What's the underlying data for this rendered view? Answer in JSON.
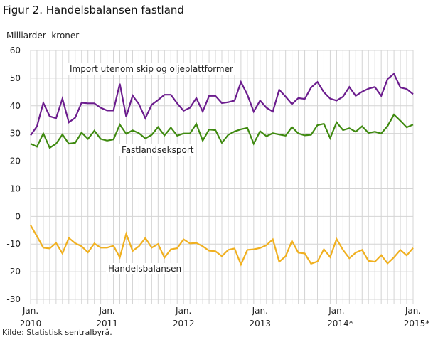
{
  "chart_data": {
    "type": "line",
    "title": "Figur 2. Handelsbalansen fastland",
    "ylabel": "Milliarder  kroner",
    "xlabel": "",
    "source": "Kilde: Statistisk sentralbyrå.",
    "ylim": [
      -30,
      60
    ],
    "yticks": [
      60,
      50,
      40,
      30,
      20,
      10,
      0,
      -10,
      -20,
      -30
    ],
    "grid": true,
    "x_start": "2010-01",
    "x_end": "2015-01",
    "frequency": "monthly",
    "xticks": [
      {
        "month": "Jan.",
        "year": "2010"
      },
      {
        "month": "Jan.",
        "year": "2011"
      },
      {
        "month": "Jan.",
        "year": "2012"
      },
      {
        "month": "Jan.",
        "year": "2013"
      },
      {
        "month": "Jan.",
        "year": "2014*"
      },
      {
        "month": "Jan.",
        "year": "2015*"
      }
    ],
    "series": [
      {
        "name": "Import utenom skip og oljeplattformer",
        "color": "#6c1d8e",
        "values": [
          29.3,
          32.6,
          41.1,
          36.2,
          35.5,
          42.6,
          34.0,
          35.7,
          41.1,
          40.9,
          40.9,
          39.3,
          38.3,
          38.3,
          48.0,
          36.0,
          43.7,
          40.6,
          35.5,
          40.4,
          42.1,
          44.0,
          44.0,
          40.9,
          38.2,
          39.3,
          42.8,
          37.9,
          43.6,
          43.6,
          41.0,
          41.3,
          41.9,
          48.6,
          44.0,
          37.9,
          41.9,
          39.3,
          37.9,
          45.8,
          43.3,
          40.6,
          42.8,
          42.5,
          46.6,
          48.6,
          44.9,
          42.6,
          41.9,
          43.3,
          46.8,
          43.6,
          45.1,
          46.2,
          46.8,
          43.6,
          49.7,
          51.6,
          46.6,
          46.1,
          44.2
        ]
      },
      {
        "name": "Fastlandseksport",
        "color": "#3f8a10",
        "values": [
          26.3,
          25.2,
          30.0,
          24.8,
          26.3,
          29.6,
          26.3,
          26.6,
          30.3,
          28.0,
          31.0,
          28.0,
          27.4,
          27.8,
          33.2,
          29.9,
          31.1,
          30.1,
          28.2,
          29.5,
          32.3,
          29.3,
          32.1,
          29.2,
          30.0,
          30.0,
          33.4,
          27.4,
          31.4,
          31.2,
          26.6,
          29.5,
          30.7,
          31.5,
          32.0,
          26.3,
          30.8,
          29.0,
          30.1,
          29.6,
          29.2,
          32.3,
          30.0,
          29.3,
          29.5,
          33.0,
          33.5,
          28.3,
          34.0,
          31.2,
          31.9,
          30.6,
          32.6,
          30.2,
          30.6,
          30.0,
          32.7,
          36.8,
          34.6,
          32.2,
          33.2
        ]
      },
      {
        "name": "Handelsbalansen",
        "color": "#f0b020",
        "values": [
          -3.2,
          -7.2,
          -11.3,
          -11.6,
          -9.6,
          -13.4,
          -7.8,
          -9.7,
          -10.8,
          -13.0,
          -9.8,
          -11.3,
          -11.3,
          -10.6,
          -14.8,
          -6.3,
          -12.5,
          -10.8,
          -7.8,
          -11.3,
          -10.0,
          -14.9,
          -11.9,
          -11.5,
          -8.3,
          -9.8,
          -9.6,
          -10.8,
          -12.4,
          -12.6,
          -14.4,
          -12.1,
          -11.6,
          -17.4,
          -12.1,
          -11.9,
          -11.4,
          -10.4,
          -8.3,
          -16.4,
          -14.4,
          -8.9,
          -13.1,
          -13.4,
          -17.1,
          -16.3,
          -11.9,
          -14.7,
          -8.2,
          -12.1,
          -15.1,
          -13.1,
          -12.1,
          -16.1,
          -16.4,
          -14.0,
          -17.0,
          -14.8,
          -12.1,
          -14.1,
          -11.4
        ]
      }
    ]
  }
}
